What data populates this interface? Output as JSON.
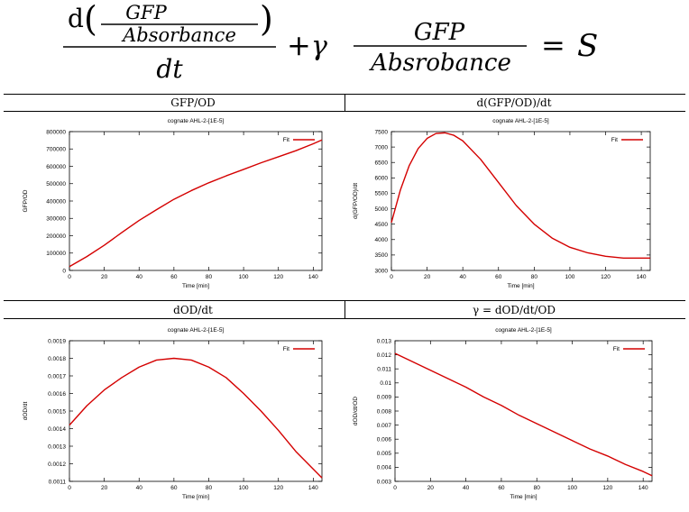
{
  "equation": {
    "num_top": "GFP",
    "num_bottom": "Absorbance",
    "dt": "dt",
    "second_top": "GFP",
    "second_bottom": "Absrobance",
    "rhs": "S"
  },
  "headers": {
    "top_left": "GFP/OD",
    "top_right": "d(GFP/OD)/dt",
    "bottom_left": "dOD/dt",
    "bottom_right": "γ = dOD/dt/OD"
  },
  "colors": {
    "series": "#d40000"
  },
  "chart_data": [
    {
      "type": "line",
      "title": "cognate AHL-2-[1E-5]",
      "xlabel": "Time [min]",
      "ylabel": "GFP/OD",
      "xlim": [
        0,
        145
      ],
      "ylim": [
        0,
        800000
      ],
      "xticks": [
        "0",
        "20",
        "40",
        "60",
        "80",
        "100",
        "120",
        "140"
      ],
      "yticks": [
        "0",
        "100000",
        "200000",
        "300000",
        "400000",
        "500000",
        "600000",
        "700000",
        "800000"
      ],
      "legend": "top-right",
      "series": [
        {
          "name": "Fit",
          "x": [
            0,
            10,
            20,
            30,
            40,
            50,
            60,
            70,
            80,
            90,
            100,
            110,
            120,
            130,
            140,
            145
          ],
          "y": [
            22000,
            80000,
            145000,
            218000,
            288000,
            350000,
            410000,
            460000,
            505000,
            545000,
            582000,
            620000,
            655000,
            690000,
            730000,
            752000
          ]
        }
      ]
    },
    {
      "type": "line",
      "title": "cognate AHL-2-[1E-5]",
      "xlabel": "Time [min]",
      "ylabel": "d(GFP/OD)/dt",
      "xlim": [
        0,
        145
      ],
      "ylim": [
        3000,
        7500
      ],
      "xticks": [
        "0",
        "20",
        "40",
        "60",
        "80",
        "100",
        "120",
        "140"
      ],
      "yticks": [
        "3000",
        "3500",
        "4000",
        "4500",
        "5000",
        "5500",
        "6000",
        "6500",
        "7000",
        "7500"
      ],
      "legend": "top-right",
      "series": [
        {
          "name": "Fit",
          "x": [
            0,
            5,
            10,
            15,
            20,
            25,
            30,
            35,
            40,
            50,
            60,
            70,
            80,
            90,
            100,
            110,
            120,
            130,
            140,
            145
          ],
          "y": [
            4550,
            5600,
            6400,
            6950,
            7280,
            7440,
            7460,
            7380,
            7200,
            6600,
            5850,
            5100,
            4500,
            4050,
            3750,
            3570,
            3460,
            3400,
            3400,
            3400
          ]
        }
      ]
    },
    {
      "type": "line",
      "title": "cognate AHL-2-[1E-5]",
      "xlabel": "Time [min]",
      "ylabel": "dOD/dt",
      "xlim": [
        0,
        145
      ],
      "ylim": [
        0.0011,
        0.0019
      ],
      "xticks": [
        "0",
        "20",
        "40",
        "60",
        "80",
        "100",
        "120",
        "140"
      ],
      "yticks": [
        "0.0011",
        "0.0012",
        "0.0013",
        "0.0014",
        "0.0015",
        "0.0016",
        "0.0017",
        "0.0018",
        "0.0019"
      ],
      "legend": "top-right",
      "series": [
        {
          "name": "Fit",
          "x": [
            0,
            10,
            20,
            30,
            40,
            50,
            60,
            70,
            80,
            90,
            100,
            110,
            120,
            130,
            140,
            145
          ],
          "y": [
            0.00142,
            0.00153,
            0.00162,
            0.00169,
            0.00175,
            0.00179,
            0.0018,
            0.00179,
            0.00175,
            0.00169,
            0.0016,
            0.0015,
            0.00139,
            0.00127,
            0.00117,
            0.00112
          ]
        }
      ]
    },
    {
      "type": "line",
      "title": "cognate AHL-2-[1E-5]",
      "xlabel": "Time [min]",
      "ylabel": "dOD/dt/OD",
      "xlim": [
        0,
        145
      ],
      "ylim": [
        0.003,
        0.013
      ],
      "xticks": [
        "0",
        "20",
        "40",
        "60",
        "80",
        "100",
        "120",
        "140"
      ],
      "yticks": [
        "0.003",
        "0.004",
        "0.005",
        "0.006",
        "0.007",
        "0.008",
        "0.009",
        "0.01",
        "0.011",
        "0.012",
        "0.013"
      ],
      "legend": "top-right",
      "series": [
        {
          "name": "Fit",
          "x": [
            0,
            10,
            20,
            30,
            40,
            50,
            60,
            70,
            80,
            90,
            100,
            110,
            120,
            130,
            140,
            145
          ],
          "y": [
            0.0121,
            0.0115,
            0.0109,
            0.0103,
            0.0097,
            0.009,
            0.0084,
            0.0077,
            0.0071,
            0.0065,
            0.0059,
            0.0053,
            0.0048,
            0.0042,
            0.0037,
            0.0034
          ]
        }
      ]
    }
  ]
}
